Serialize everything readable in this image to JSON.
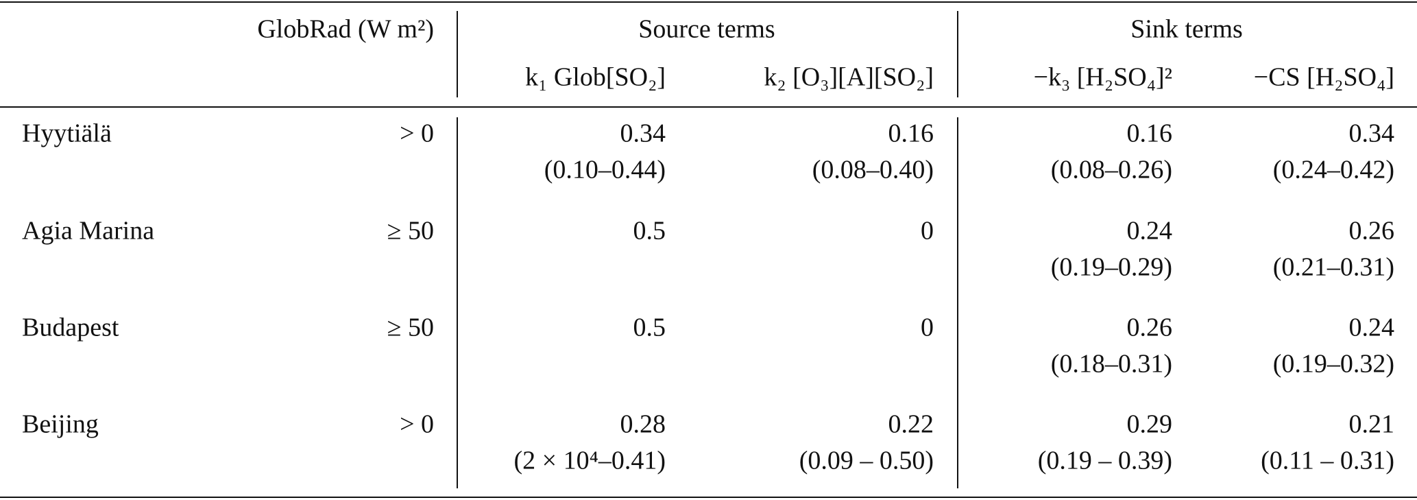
{
  "header": {
    "globrad": "GlobRad (W m²)",
    "source_group": "Source terms",
    "sink_group": "Sink terms",
    "columns": [
      "k₁ Glob[SO₂]",
      "k₂ [O₃][A][SO₂]",
      "−k₃ [H₂SO₄]²",
      "−CS [H₂SO₄]"
    ]
  },
  "table": {
    "rows": [
      {
        "site": "Hyytiälä",
        "condition": "> 0",
        "cells": [
          {
            "value": "0.34",
            "range": "(0.10–0.44)"
          },
          {
            "value": "0.16",
            "range": "(0.08–0.40)"
          },
          {
            "value": "0.16",
            "range": "(0.08–0.26)"
          },
          {
            "value": "0.34",
            "range": "(0.24–0.42)"
          }
        ]
      },
      {
        "site": "Agia Marina",
        "condition": "≥ 50",
        "cells": [
          {
            "value": "0.5"
          },
          {
            "value": "0"
          },
          {
            "value": "0.24",
            "range": "(0.19–0.29)"
          },
          {
            "value": "0.26",
            "range": "(0.21–0.31)"
          }
        ]
      },
      {
        "site": "Budapest",
        "condition": "≥ 50",
        "cells": [
          {
            "value": "0.5"
          },
          {
            "value": "0"
          },
          {
            "value": "0.26",
            "range": "(0.18–0.31)"
          },
          {
            "value": "0.24",
            "range": "(0.19–0.32)"
          }
        ]
      },
      {
        "site": "Beijing",
        "condition": "> 0",
        "cells": [
          {
            "value": "0.28",
            "range": "(2 × 10⁴–0.41)"
          },
          {
            "value": "0.22",
            "range": "(0.09 – 0.50)"
          },
          {
            "value": "0.29",
            "range": "(0.19 – 0.39)"
          },
          {
            "value": "0.21",
            "range": "(0.11 – 0.31)"
          }
        ]
      }
    ]
  }
}
